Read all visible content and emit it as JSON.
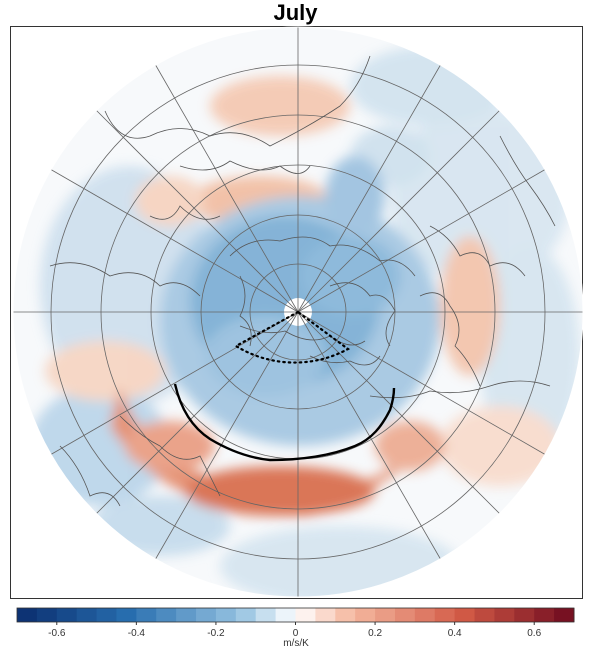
{
  "title": "July",
  "colorbar": {
    "label": "m/s/K",
    "tick_labels": [
      "-0.6",
      "-0.4",
      "-0.2",
      "0",
      "0.2",
      "0.4",
      "0.6"
    ],
    "tick_values": [
      -0.6,
      -0.4,
      -0.2,
      0,
      0.2,
      0.4,
      0.6
    ],
    "range": [
      -0.7,
      0.7
    ],
    "colormap": "blue-white-red diverging",
    "colors": {
      "min": "#0a2d6e",
      "mid": "#ffffff",
      "max": "#6e0a1e"
    }
  },
  "map": {
    "projection": "north polar stereographic",
    "background": "#ffffff",
    "coastline_color": "#555555",
    "gridline_color": "#555555",
    "annotations": [
      {
        "type": "sector",
        "style": "dotted",
        "color": "#000000"
      },
      {
        "type": "arc",
        "style": "solid",
        "color": "#000000"
      }
    ]
  }
}
